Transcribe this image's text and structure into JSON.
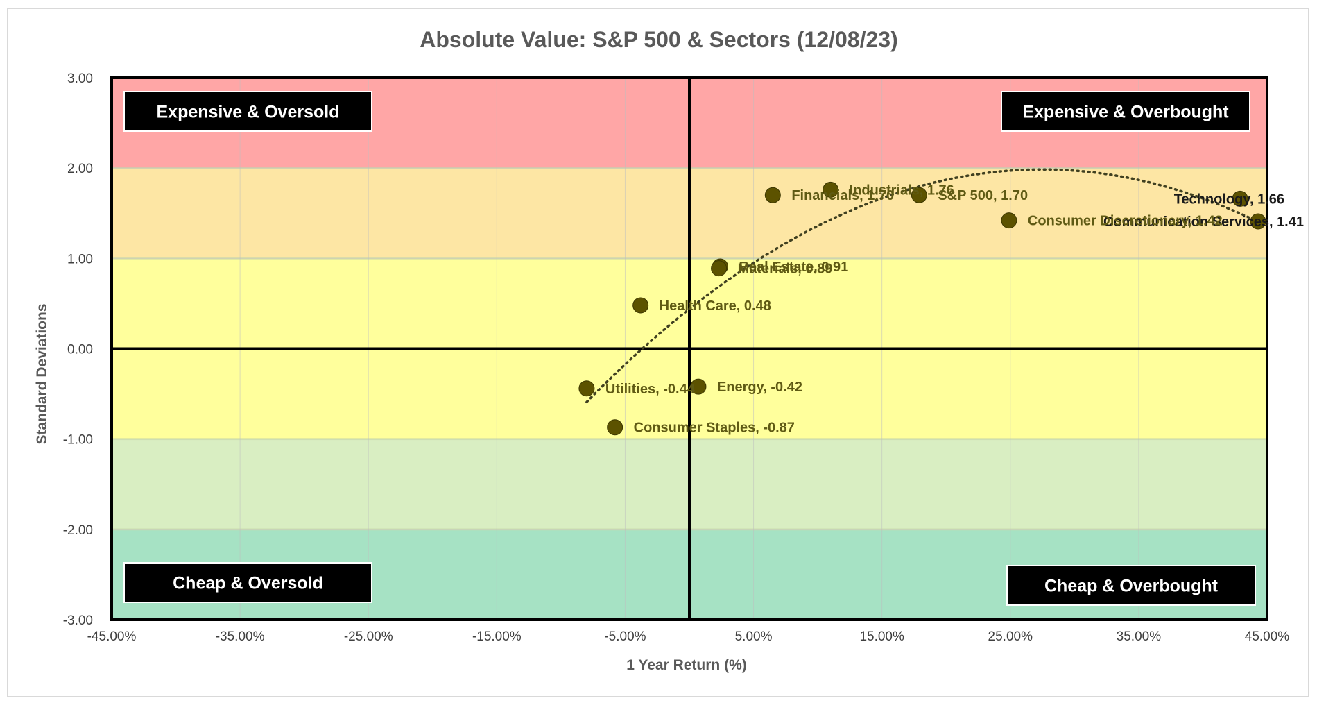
{
  "chart_data": {
    "type": "scatter",
    "title": "Absolute Value: S&P 500 & Sectors (12/08/23)",
    "xlabel": "1 Year Return (%)",
    "ylabel": "Standard Deviations",
    "xlim": [
      -45,
      45
    ],
    "ylim": [
      -3,
      3
    ],
    "x_ticks": [
      "-45.00%",
      "-35.00%",
      "-25.00%",
      "-15.00%",
      "-5.00%",
      "5.00%",
      "15.00%",
      "25.00%",
      "35.00%",
      "45.00%"
    ],
    "y_ticks": [
      "3.00",
      "2.00",
      "1.00",
      "0.00",
      "-1.00",
      "-2.00",
      "-3.00"
    ],
    "grid": true,
    "bands": [
      {
        "from": 2,
        "to": 3,
        "color": "#ffa6a6"
      },
      {
        "from": 1,
        "to": 2,
        "color": "#fde6a4"
      },
      {
        "from": -1,
        "to": 1,
        "color": "#ffff9c"
      },
      {
        "from": -2,
        "to": -1,
        "color": "#d9eec2"
      },
      {
        "from": -3,
        "to": -2,
        "color": "#a6e2c4"
      }
    ],
    "quadrant_labels": [
      {
        "text": "Expensive & Oversold",
        "position": "top-left"
      },
      {
        "text": "Expensive & Overbought",
        "position": "top-right"
      },
      {
        "text": "Cheap & Oversold",
        "position": "bottom-left"
      },
      {
        "text": "Cheap & Overbought",
        "position": "bottom-right"
      }
    ],
    "points": [
      {
        "name": "Technology",
        "x": 42.9,
        "y": 1.66,
        "label": "Technology, 1.66"
      },
      {
        "name": "Communication Services",
        "x": 44.3,
        "y": 1.41,
        "label": "Communication Services, 1.41"
      },
      {
        "name": "Consumer Discretionary",
        "x": 24.9,
        "y": 1.42,
        "label": "Consumer Discretionary, 1.42"
      },
      {
        "name": "S&P 500",
        "x": 17.9,
        "y": 1.7,
        "label": "S&P 500, 1.70"
      },
      {
        "name": "Industrials",
        "x": 11.0,
        "y": 1.76,
        "label": "Industrials, 1.76"
      },
      {
        "name": "Financials",
        "x": 6.5,
        "y": 1.7,
        "label": "Financials, 1.70"
      },
      {
        "name": "Real Estate",
        "x": 2.4,
        "y": 0.91,
        "label": "Real Estate, 0.91"
      },
      {
        "name": "Materials",
        "x": 2.3,
        "y": 0.89,
        "label": "Materials, 0.89"
      },
      {
        "name": "Health Care",
        "x": -3.8,
        "y": 0.48,
        "label": "Health Care, 0.48"
      },
      {
        "name": "Energy",
        "x": 0.7,
        "y": -0.42,
        "label": "Energy, -0.42"
      },
      {
        "name": "Utilities",
        "x": -8.0,
        "y": -0.44,
        "label": "Utilities, -0.44"
      },
      {
        "name": "Consumer Staples",
        "x": -5.8,
        "y": -0.87,
        "label": "Consumer Staples, -0.87"
      }
    ],
    "trendline": {
      "type": "polynomial",
      "style": "dotted",
      "color": "#404020"
    },
    "colors": {
      "point": "#5c5200",
      "label": "#5f5a14",
      "quadrant_label_bg": "#000000",
      "quadrant_label_text": "#ffffff"
    }
  }
}
